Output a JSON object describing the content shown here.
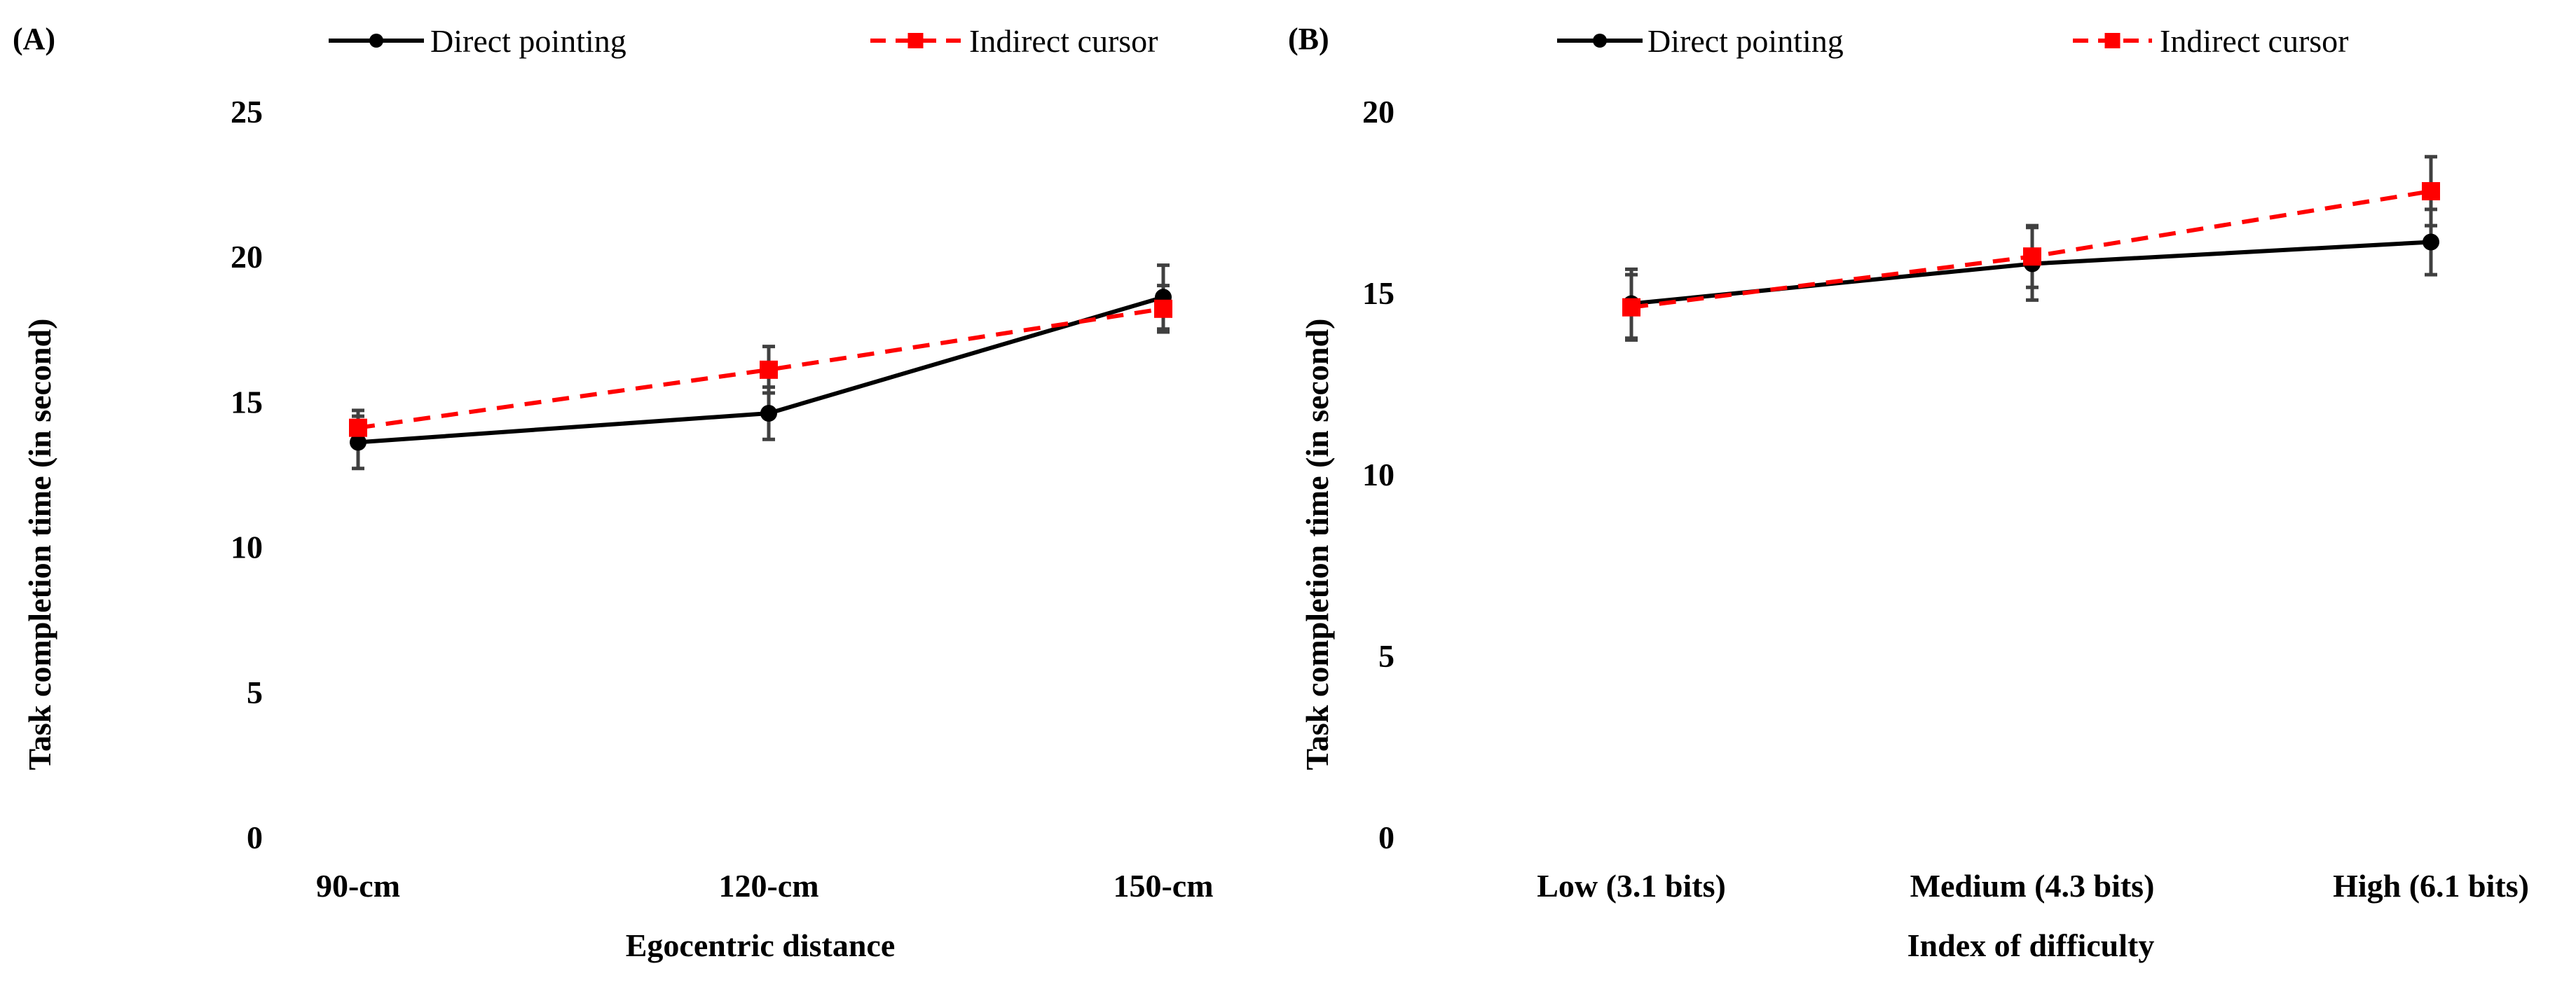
{
  "colors": {
    "direct": "#000000",
    "indirect": "#ff0000",
    "errorbar": "#404040"
  },
  "chart_data": [
    {
      "panel_label": "(A)",
      "type": "line",
      "title": "",
      "xlabel": "Egocentric distance",
      "ylabel": "Task completion time (in second)",
      "ylim": [
        0,
        25
      ],
      "yticks": [
        0,
        5,
        10,
        15,
        20,
        25
      ],
      "grid": false,
      "legend_position": "top",
      "categories": [
        "90-cm",
        "120-cm",
        "150-cm"
      ],
      "series": [
        {
          "name": "Direct pointing",
          "values": [
            13.6,
            14.6,
            18.6
          ],
          "errors": [
            0.9,
            0.9,
            1.1
          ],
          "style": "solid",
          "marker": "circle"
        },
        {
          "name": "Indirect cursor",
          "values": [
            14.1,
            16.1,
            18.2
          ],
          "errors": [
            0.6,
            0.8,
            0.8
          ],
          "style": "dashed",
          "marker": "square"
        }
      ]
    },
    {
      "panel_label": "(B)",
      "type": "line",
      "title": "",
      "xlabel": "Index of difficulty",
      "ylabel": "Task completion time (in second)",
      "ylim": [
        0,
        20
      ],
      "yticks": [
        0,
        5,
        10,
        15,
        20
      ],
      "grid": false,
      "legend_position": "top",
      "categories": [
        "Low (3.1 bits)",
        "Medium (4.3 bits)",
        "High (6.1 bits)"
      ],
      "series": [
        {
          "name": "Direct pointing",
          "values": [
            14.7,
            15.8,
            16.4
          ],
          "errors": [
            0.95,
            1.0,
            0.9
          ],
          "style": "solid",
          "marker": "circle"
        },
        {
          "name": "Indirect cursor",
          "values": [
            14.6,
            16.0,
            17.8
          ],
          "errors": [
            0.9,
            0.85,
            0.95
          ],
          "style": "dashed",
          "marker": "square"
        }
      ]
    }
  ]
}
